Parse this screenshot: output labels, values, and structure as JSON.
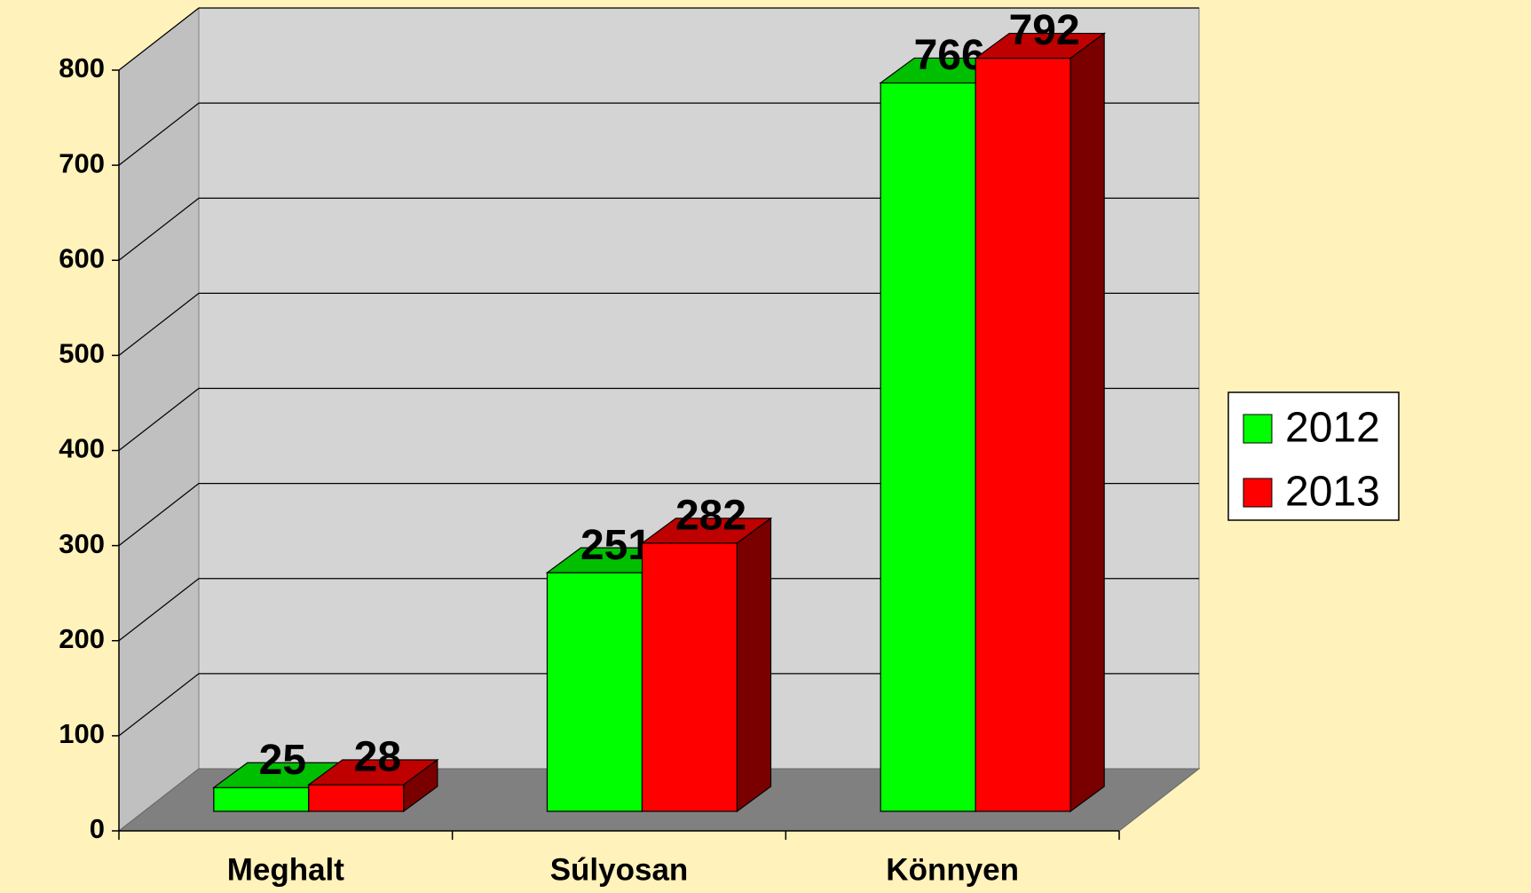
{
  "chart_data": {
    "type": "bar3d",
    "categories": [
      "Meghalt",
      "Súlyosan",
      "Könnyen"
    ],
    "series": [
      {
        "name": "2012",
        "color": "#00ff00",
        "values": [
          25,
          251,
          766
        ]
      },
      {
        "name": "2013",
        "color": "#ff0000",
        "values": [
          28,
          282,
          792
        ]
      }
    ],
    "ylim": [
      0,
      800
    ],
    "yticks": [
      0,
      100,
      200,
      300,
      400,
      500,
      600,
      700,
      800
    ],
    "grid": true,
    "legend": "right"
  }
}
